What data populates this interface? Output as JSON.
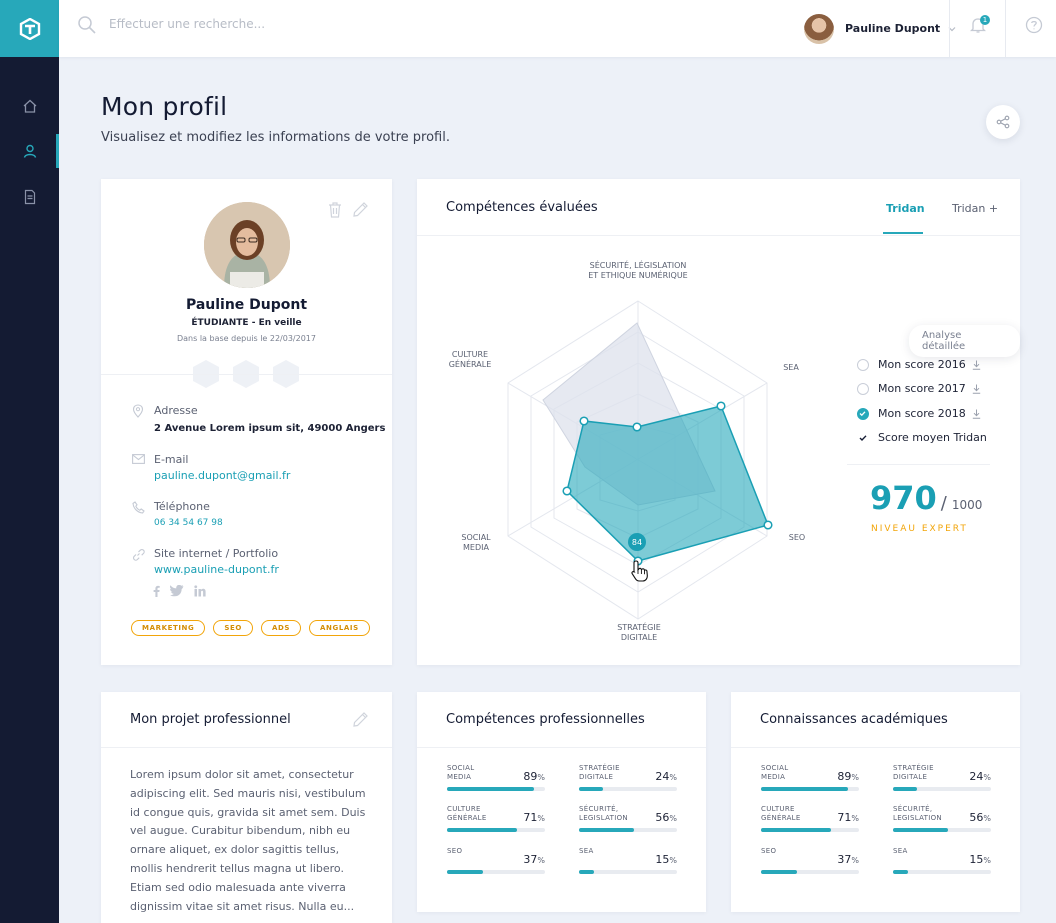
{
  "topbar": {
    "search_placeholder": "Effectuer une recherche...",
    "user_name": "Pauline Dupont",
    "notif_count": "1"
  },
  "header": {
    "title": "Mon profil",
    "subtitle": "Visualisez et modifiez les informations de votre profil."
  },
  "profile": {
    "name": "Pauline Dupont",
    "status": "ÉTUDIANTE - En veille",
    "since": "Dans la base depuis le 22/03/2017",
    "address_label": "Adresse",
    "address_value": "2 Avenue Lorem ipsum sit, 49000 Angers",
    "email_label": "E-mail",
    "email_value": "pauline.dupont@gmail.fr",
    "phone_label": "Téléphone",
    "phone_value": "06 34 54 67 98",
    "site_label": "Site internet / Portfolio",
    "site_value": "www.pauline-dupont.fr",
    "tags": [
      "MARKETING",
      "SEO",
      "ADS",
      "ANGLAIS"
    ]
  },
  "competences": {
    "title": "Compétences évaluées",
    "tabs": [
      "Tridan",
      "Tridan +"
    ],
    "active_tab": "Tridan",
    "axes": {
      "securite_1": "SÉCURITÉ, LÉGISLATION",
      "securite_2": "ET ETHIQUE NUMÉRIQUE",
      "sea": "SEA",
      "seo": "SEO",
      "strategie_1": "STRATÉGIE",
      "strategie_2": "DIGITALE",
      "social_1": "SOCIAL",
      "social_2": "MEDIA",
      "culture_1": "CULTURE",
      "culture_2": "GÉNÉRALE"
    },
    "hover_value": "84",
    "analyse_label": "Analyse détaillée",
    "legend": [
      {
        "label": "Mon score 2016",
        "state": "off",
        "download": true
      },
      {
        "label": "Mon score 2017",
        "state": "off",
        "download": true
      },
      {
        "label": "Mon score 2018",
        "state": "on",
        "download": true
      },
      {
        "label": "Score moyen Tridan",
        "state": "check",
        "download": false
      }
    ],
    "score": "970",
    "score_max": "1000",
    "score_slash": "/",
    "level": "NIVEAU EXPERT",
    "accent_color": "#27a8ba"
  },
  "projet": {
    "title": "Mon projet professionnel",
    "text": "Lorem ipsum dolor sit amet, consectetur adipiscing elit. Sed mauris nisi, vestibulum id congue quis, gravida sit amet sem. Duis vel augue. Curabitur bibendum, nibh eu ornare aliquet, ex dolor sagittis tellus, mollis hendrerit tellus magna ut libero. Etiam sed odio malesuada ante viverra dignissim vitae sit amet risus. Nulla eu..."
  },
  "skills_pro": {
    "title": "Compétences professionnelles",
    "items": [
      {
        "l1": "SOCIAL",
        "l2": "MEDIA",
        "value": "89",
        "fraction": 0.89
      },
      {
        "l1": "STRATÉGIE",
        "l2": "DIGITALE",
        "value": "24",
        "fraction": 0.24
      },
      {
        "l1": "CULTURE",
        "l2": "GÉNÉRALE",
        "value": "71",
        "fraction": 0.71
      },
      {
        "l1": "SÉCURITÉ,",
        "l2": "LEGISLATION",
        "value": "56",
        "fraction": 0.56
      },
      {
        "l1": "SEO",
        "l2": "",
        "value": "37",
        "fraction": 0.37
      },
      {
        "l1": "SEA",
        "l2": "",
        "value": "15",
        "fraction": 0.15
      }
    ]
  },
  "skills_acad": {
    "title": "Connaissances académiques",
    "items": [
      {
        "l1": "SOCIAL",
        "l2": "MEDIA",
        "value": "89",
        "fraction": 0.89
      },
      {
        "l1": "STRATÉGIE",
        "l2": "DIGITALE",
        "value": "24",
        "fraction": 0.24
      },
      {
        "l1": "CULTURE",
        "l2": "GÉNÉRALE",
        "value": "71",
        "fraction": 0.71
      },
      {
        "l1": "SÉCURITÉ,",
        "l2": "LEGISLATION",
        "value": "56",
        "fraction": 0.56
      },
      {
        "l1": "SEO",
        "l2": "",
        "value": "37",
        "fraction": 0.37
      },
      {
        "l1": "SEA",
        "l2": "",
        "value": "15",
        "fraction": 0.15
      }
    ]
  },
  "percent_sign": "%"
}
